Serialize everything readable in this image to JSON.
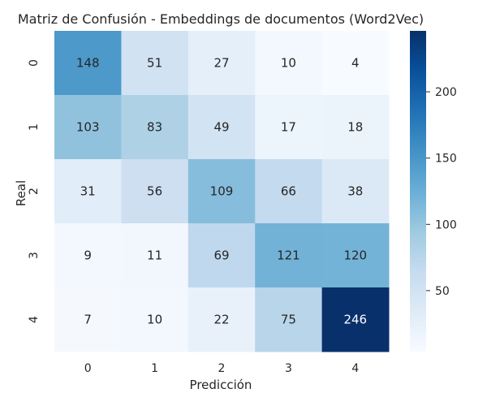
{
  "chart_data": {
    "type": "heatmap",
    "title": "Matriz de Confusión - Embeddings de documentos (Word2Vec)",
    "xlabel": "Predicción",
    "ylabel": "Real",
    "x_categories": [
      "0",
      "1",
      "2",
      "3",
      "4"
    ],
    "y_categories": [
      "0",
      "1",
      "2",
      "3",
      "4"
    ],
    "values": [
      [
        148,
        51,
        27,
        10,
        4
      ],
      [
        103,
        83,
        49,
        17,
        18
      ],
      [
        31,
        56,
        109,
        66,
        38
      ],
      [
        9,
        11,
        69,
        121,
        120
      ],
      [
        7,
        10,
        22,
        75,
        246
      ]
    ],
    "colormap": "Blues",
    "colorbar": {
      "min": 4,
      "max": 246,
      "ticks": [
        50,
        100,
        150,
        200
      ]
    }
  }
}
